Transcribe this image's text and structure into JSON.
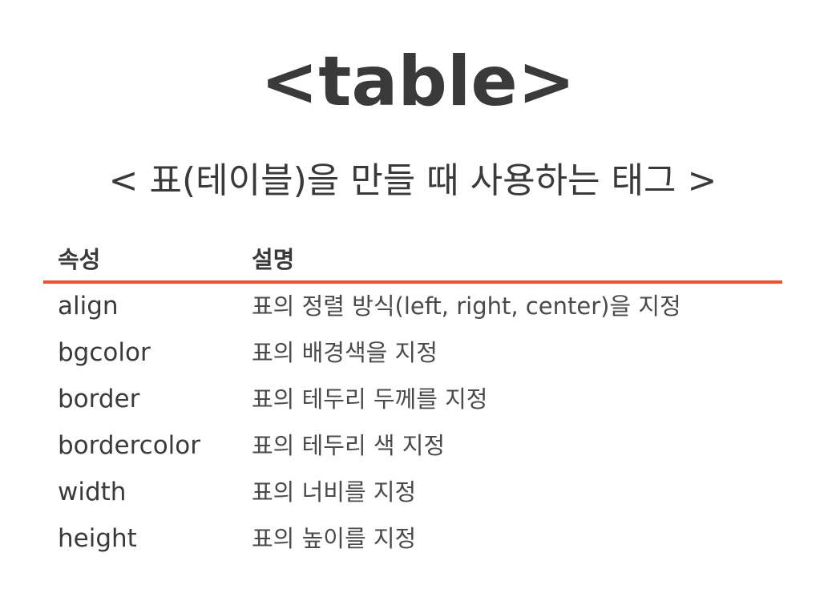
{
  "title": "<table>",
  "subtitle": "< 표(테이블)을 만들 때 사용하는 태그 >",
  "accent_color": "#f0502a",
  "table": {
    "headers": {
      "attribute": "속성",
      "description": "설명"
    },
    "rows": [
      {
        "attribute": "align",
        "description": "표의 정렬 방식(left, right, center)을 지정"
      },
      {
        "attribute": "bgcolor",
        "description": "표의 배경색을 지정"
      },
      {
        "attribute": "border",
        "description": "표의 테두리 두께를 지정"
      },
      {
        "attribute": "bordercolor",
        "description": "표의 테두리 색 지정"
      },
      {
        "attribute": "width",
        "description": "표의 너비를 지정"
      },
      {
        "attribute": "height",
        "description": "표의 높이를 지정"
      }
    ]
  }
}
